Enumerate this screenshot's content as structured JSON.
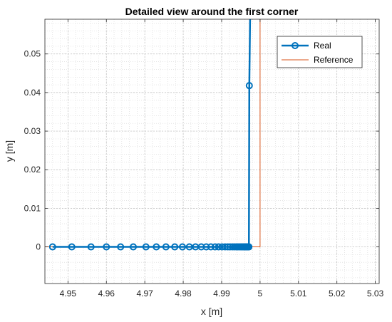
{
  "chart_data": {
    "type": "line",
    "title": "Detailed view around the first corner",
    "xlabel": "x [m]",
    "ylabel": "y [m]",
    "xlim": [
      4.944,
      5.031
    ],
    "ylim": [
      -0.0095,
      0.059
    ],
    "xticks": [
      4.95,
      4.96,
      4.97,
      4.98,
      4.99,
      5,
      5.01,
      5.02,
      5.03
    ],
    "xtick_labels": [
      "4.95",
      "4.96",
      "4.97",
      "4.98",
      "4.99",
      "5",
      "5.01",
      "5.02",
      "5.03"
    ],
    "yticks": [
      0,
      0.01,
      0.02,
      0.03,
      0.04,
      0.05
    ],
    "ytick_labels": [
      "0",
      "0.01",
      "0.02",
      "0.03",
      "0.04",
      "0.05"
    ],
    "grid": "major and minor",
    "legend_position": "top-right",
    "series": [
      {
        "name": "Real",
        "color": "#0072BD",
        "marker": "circle",
        "x": [
          4.946,
          4.951,
          4.956,
          4.96,
          4.9637,
          4.967,
          4.9703,
          4.973,
          4.9755,
          4.9778,
          4.9798,
          4.9816,
          4.9832,
          4.9847,
          4.986,
          4.9872,
          4.9883,
          4.9892,
          4.9901,
          4.9909,
          4.9916,
          4.9922,
          4.9928,
          4.9933,
          4.9938,
          4.9942,
          4.9946,
          4.995,
          4.9953,
          4.9956,
          4.9959,
          4.9961,
          4.9963,
          4.9965,
          4.9966,
          4.9967,
          4.9968,
          4.9969,
          4.997,
          4.9971,
          4.9972,
          4.9974
        ],
        "y": [
          0,
          0,
          0,
          0,
          0,
          0,
          0,
          0,
          0,
          0,
          0,
          0,
          0,
          0,
          0,
          0,
          0,
          0,
          0,
          0,
          0,
          0,
          0,
          0,
          0,
          0,
          0,
          0,
          0,
          0,
          0,
          0,
          0,
          0,
          0,
          0,
          0,
          0,
          0,
          0,
          0.0418,
          0.059
        ]
      },
      {
        "name": "Reference",
        "color": "#D95319",
        "marker": "none",
        "x": [
          4.944,
          5.0,
          5.0
        ],
        "y": [
          0,
          0,
          0.059
        ]
      }
    ]
  }
}
